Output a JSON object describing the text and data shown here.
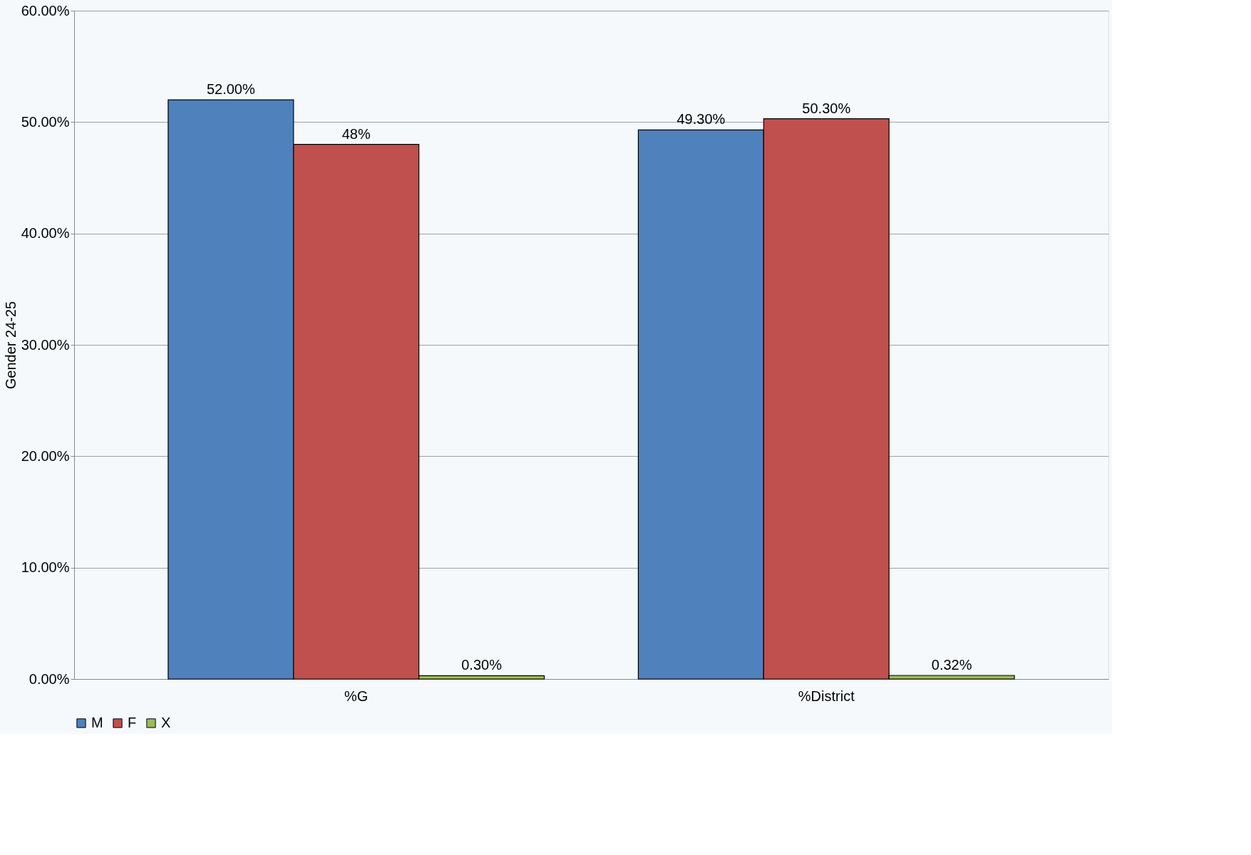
{
  "chart_data": {
    "type": "bar",
    "ylabel": "Gender 24-25",
    "categories": [
      "%G",
      "%District"
    ],
    "series": [
      {
        "name": "M",
        "color": "#4f81bd",
        "values": [
          52.0,
          49.3
        ],
        "value_labels": [
          "52.00%",
          "49.30%"
        ]
      },
      {
        "name": "F",
        "color": "#c0504d",
        "values": [
          48.0,
          50.3
        ],
        "value_labels": [
          "48%",
          "50.30%"
        ]
      },
      {
        "name": "X",
        "color": "#9bbb59",
        "values": [
          0.3,
          0.32
        ],
        "value_labels": [
          "0.30%",
          "0.32%"
        ]
      }
    ],
    "ylim": [
      0,
      60
    ],
    "yticks": [
      {
        "value": 0,
        "label": "0.00%"
      },
      {
        "value": 10,
        "label": "10.00%"
      },
      {
        "value": 20,
        "label": "20.00%"
      },
      {
        "value": 30,
        "label": "30.00%"
      },
      {
        "value": 40,
        "label": "40.00%"
      },
      {
        "value": 50,
        "label": "50.00%"
      },
      {
        "value": 60,
        "label": "60.00%"
      }
    ],
    "grid": "y",
    "legend": "bottom"
  }
}
